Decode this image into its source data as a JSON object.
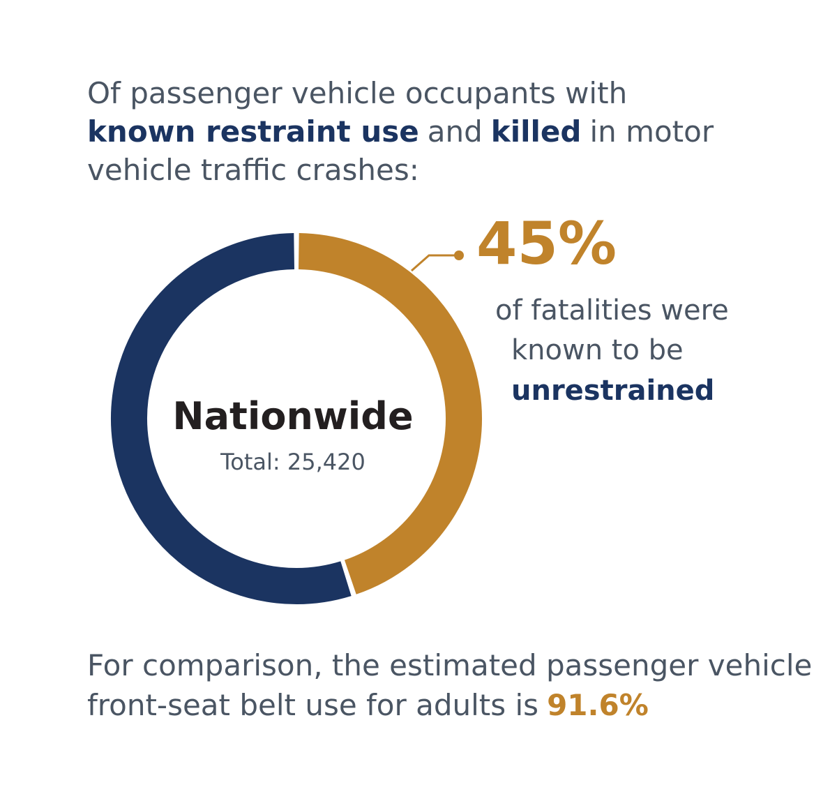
{
  "chart_data": {
    "type": "donut",
    "title": [
      "Of passenger vehicle occupants with",
      "known restraint use",
      "and",
      "killed",
      "in motor",
      "vehicle traffic crashes:"
    ],
    "values": [
      45,
      55
    ],
    "value_labels": [
      "45%",
      null
    ],
    "colors": [
      "#c0832b",
      "#1b3461"
    ],
    "center_label": "Nationwide",
    "total_label": "Total: 25,420",
    "annotation": [
      "of fatalities were",
      "known to be",
      "unrestrained"
    ],
    "footnote": [
      "For comparison, the estimated passenger vehicle",
      "front-seat belt use for adults is",
      "91.6%"
    ]
  }
}
